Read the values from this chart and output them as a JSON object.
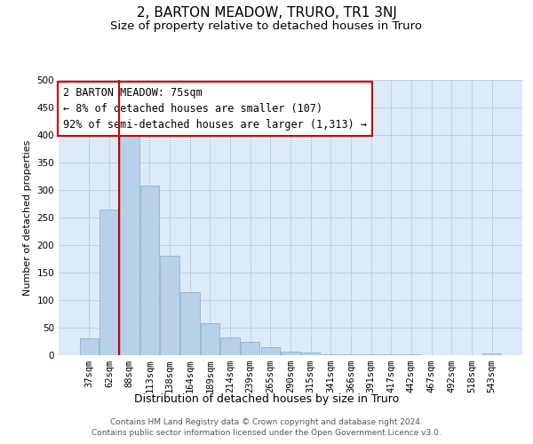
{
  "title": "2, BARTON MEADOW, TRURO, TR1 3NJ",
  "subtitle": "Size of property relative to detached houses in Truro",
  "xlabel": "Distribution of detached houses by size in Truro",
  "ylabel": "Number of detached properties",
  "categories": [
    "37sqm",
    "62sqm",
    "88sqm",
    "113sqm",
    "138sqm",
    "164sqm",
    "189sqm",
    "214sqm",
    "239sqm",
    "265sqm",
    "290sqm",
    "315sqm",
    "341sqm",
    "366sqm",
    "391sqm",
    "417sqm",
    "442sqm",
    "467sqm",
    "492sqm",
    "518sqm",
    "543sqm"
  ],
  "values": [
    30,
    265,
    398,
    308,
    181,
    115,
    58,
    33,
    25,
    15,
    6,
    5,
    2,
    2,
    1,
    1,
    1,
    0,
    0,
    0,
    4
  ],
  "bar_color": "#b8d0e8",
  "bar_edge_color": "#7aaed0",
  "vline_color": "#cc0000",
  "vline_pos": 1.5,
  "annotation_text": "2 BARTON MEADOW: 75sqm\n← 8% of detached houses are smaller (107)\n92% of semi-detached houses are larger (1,313) →",
  "annotation_box_color": "#cc0000",
  "ylim": [
    0,
    500
  ],
  "yticks": [
    0,
    50,
    100,
    150,
    200,
    250,
    300,
    350,
    400,
    450,
    500
  ],
  "grid_color": "#c0d0e0",
  "background_color": "#ddeaf7",
  "footer_text": "Contains HM Land Registry data © Crown copyright and database right 2024.\nContains public sector information licensed under the Open Government Licence v3.0.",
  "title_fontsize": 11,
  "subtitle_fontsize": 9.5,
  "xlabel_fontsize": 9,
  "ylabel_fontsize": 8,
  "tick_fontsize": 7.5,
  "annotation_fontsize": 8.5,
  "footer_fontsize": 6.5
}
